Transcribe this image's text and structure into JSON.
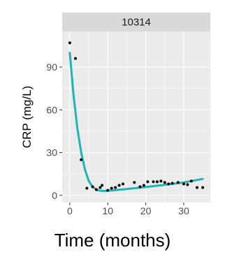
{
  "chart_data": {
    "type": "scatter",
    "facet_label": "10314",
    "xlabel": "Time (months)",
    "ylabel": "CRP (mg/L)",
    "xlim": [
      -2,
      37
    ],
    "ylim": [
      -5,
      115
    ],
    "x_ticks": [
      0,
      10,
      20,
      30
    ],
    "y_ticks": [
      0,
      30,
      60,
      90
    ],
    "grid": true,
    "colors": {
      "panel_bg": "#ebebeb",
      "strip_bg": "#d9d9d9",
      "grid_major": "#ffffff",
      "points": "#000000",
      "fit_line": "#1fb5b5"
    },
    "points": [
      {
        "x": 0,
        "y": 107
      },
      {
        "x": 1.5,
        "y": 96
      },
      {
        "x": 3,
        "y": 25
      },
      {
        "x": 4.5,
        "y": 5
      },
      {
        "x": 6,
        "y": 6
      },
      {
        "x": 7,
        "y": 4
      },
      {
        "x": 8,
        "y": 5.5
      },
      {
        "x": 8.5,
        "y": 7
      },
      {
        "x": 10,
        "y": 3.5
      },
      {
        "x": 11,
        "y": 5
      },
      {
        "x": 12,
        "y": 5.5
      },
      {
        "x": 13,
        "y": 7
      },
      {
        "x": 14,
        "y": 8
      },
      {
        "x": 17,
        "y": 9
      },
      {
        "x": 18.5,
        "y": 6
      },
      {
        "x": 19.5,
        "y": 7
      },
      {
        "x": 20.5,
        "y": 9.5
      },
      {
        "x": 22,
        "y": 9.5
      },
      {
        "x": 23,
        "y": 9.5
      },
      {
        "x": 24,
        "y": 10
      },
      {
        "x": 25,
        "y": 9
      },
      {
        "x": 26,
        "y": 8
      },
      {
        "x": 27,
        "y": 8.5
      },
      {
        "x": 28.5,
        "y": 9
      },
      {
        "x": 30,
        "y": 8
      },
      {
        "x": 31,
        "y": 7.5
      },
      {
        "x": 32,
        "y": 10
      },
      {
        "x": 33.5,
        "y": 5.5
      },
      {
        "x": 35,
        "y": 5.5
      }
    ],
    "fit_line": [
      {
        "x": 0,
        "y": 100
      },
      {
        "x": 1,
        "y": 70
      },
      {
        "x": 2,
        "y": 47
      },
      {
        "x": 3,
        "y": 30
      },
      {
        "x": 4,
        "y": 18
      },
      {
        "x": 5,
        "y": 10
      },
      {
        "x": 6,
        "y": 6
      },
      {
        "x": 7,
        "y": 4
      },
      {
        "x": 8,
        "y": 3.2
      },
      {
        "x": 9,
        "y": 3.1
      },
      {
        "x": 10,
        "y": 3.2
      },
      {
        "x": 12,
        "y": 3.6
      },
      {
        "x": 15,
        "y": 4.4
      },
      {
        "x": 20,
        "y": 5.8
      },
      {
        "x": 25,
        "y": 7.4
      },
      {
        "x": 30,
        "y": 9.0
      },
      {
        "x": 35,
        "y": 11.5
      }
    ]
  }
}
